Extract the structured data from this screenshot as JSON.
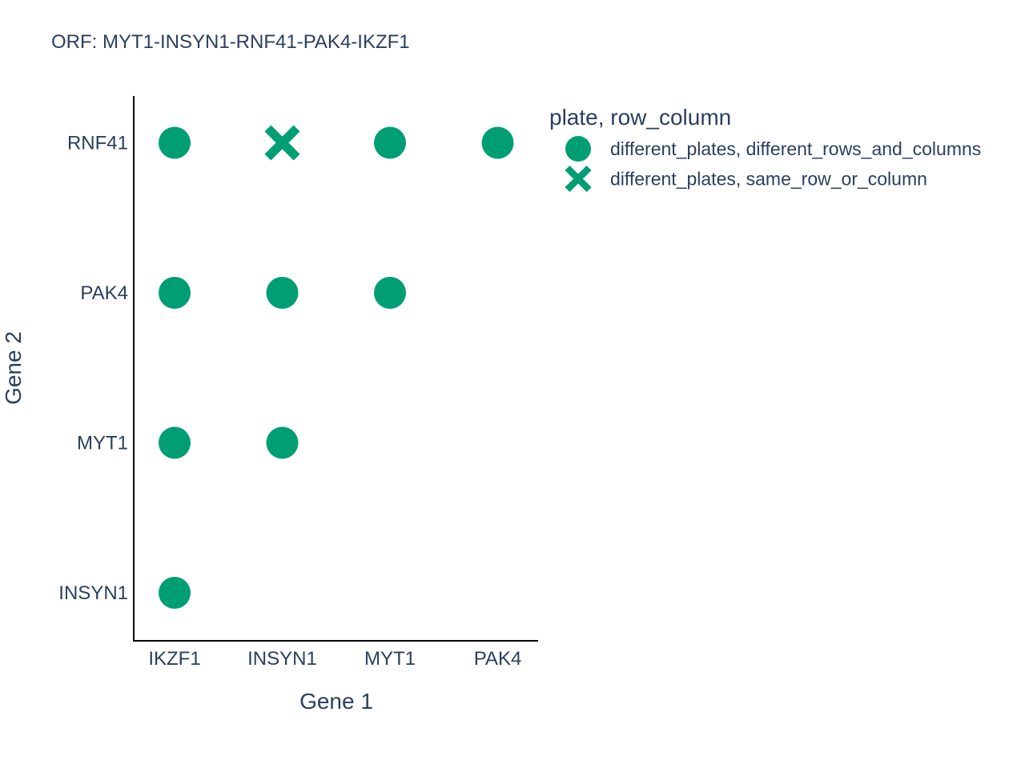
{
  "chart_data": {
    "type": "scatter",
    "title": "ORF: MYT1-INSYN1-RNF41-PAK4-IKZF1",
    "xlabel": "Gene 1",
    "ylabel": "Gene 2",
    "x_categories": [
      "IKZF1",
      "INSYN1",
      "MYT1",
      "PAK4"
    ],
    "y_categories": [
      "INSYN1",
      "MYT1",
      "PAK4",
      "RNF41"
    ],
    "grid": false,
    "legend": {
      "title": "plate, row_column",
      "placement": "top-right"
    },
    "marker_color": "#009E73",
    "series": [
      {
        "name": "different_plates, different_rows_and_columns",
        "symbol": "circle",
        "points": [
          {
            "x": "IKZF1",
            "y": "RNF41"
          },
          {
            "x": "MYT1",
            "y": "RNF41"
          },
          {
            "x": "PAK4",
            "y": "RNF41"
          },
          {
            "x": "IKZF1",
            "y": "PAK4"
          },
          {
            "x": "INSYN1",
            "y": "PAK4"
          },
          {
            "x": "MYT1",
            "y": "PAK4"
          },
          {
            "x": "IKZF1",
            "y": "MYT1"
          },
          {
            "x": "INSYN1",
            "y": "MYT1"
          },
          {
            "x": "IKZF1",
            "y": "INSYN1"
          }
        ]
      },
      {
        "name": "different_plates, same_row_or_column",
        "symbol": "x",
        "points": [
          {
            "x": "INSYN1",
            "y": "RNF41"
          }
        ]
      }
    ]
  }
}
